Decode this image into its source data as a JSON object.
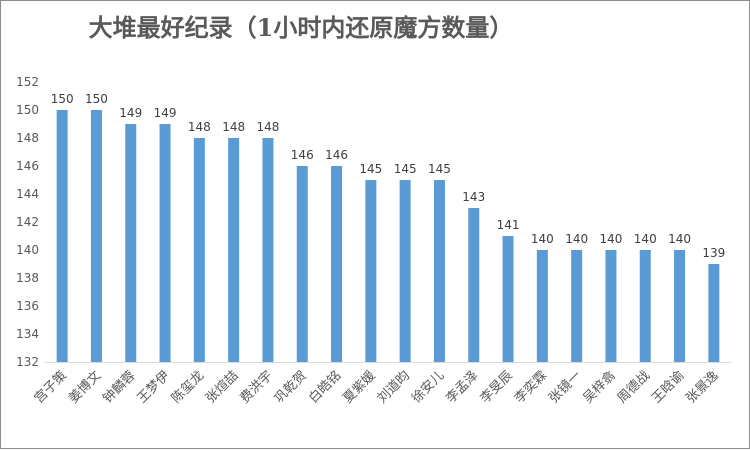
{
  "chart_data": {
    "type": "bar",
    "title": "大堆最好纪录（1小时内还原魔方数量）",
    "xlabel": "",
    "ylabel": "",
    "categories": [
      "宫子策",
      "姜博文",
      "钟麟蓉",
      "王梦伊",
      "陈玺龙",
      "张煊喆",
      "费洪宇",
      "巩乾贺",
      "白皓铭",
      "夏紫媛",
      "刘道昀",
      "徐安儿",
      "李孟泽",
      "李旻辰",
      "李奕霖",
      "张镜一",
      "吴梓翕",
      "周德战",
      "王晗谕",
      "张景逸"
    ],
    "values": [
      150,
      150,
      149,
      149,
      148,
      148,
      148,
      146,
      146,
      145,
      145,
      145,
      143,
      141,
      140,
      140,
      140,
      140,
      140,
      139
    ],
    "ylim": [
      132,
      152
    ],
    "yticks": [
      132,
      134,
      136,
      138,
      140,
      142,
      144,
      146,
      148,
      150,
      152
    ],
    "grid": false,
    "legend": "none",
    "data_labels": true,
    "bar_color": "#5b9bd5"
  }
}
